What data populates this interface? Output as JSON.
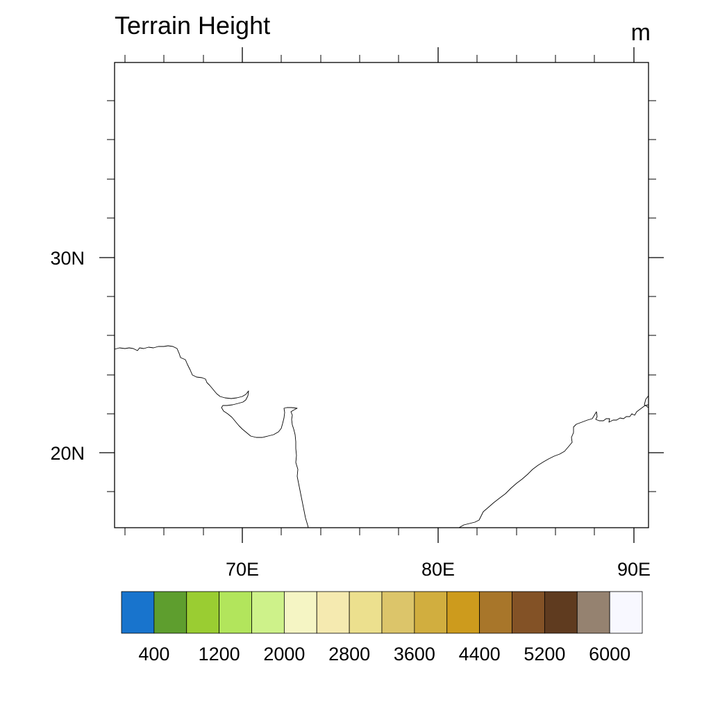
{
  "title": "Terrain Height",
  "units": "m",
  "map": {
    "lon_labels": [
      "70E",
      "80E",
      "90E"
    ],
    "lat_labels": [
      "30N",
      "20N"
    ]
  },
  "colorbar": {
    "colors": [
      "#1874cd",
      "#5e9e2e",
      "#9acd32",
      "#b2e55c",
      "#cef28a",
      "#f5f5c4",
      "#f5eab0",
      "#ece08e",
      "#dcc56a",
      "#d1ae3f",
      "#cd9b1d",
      "#a8762a",
      "#835226",
      "#5f3b1f",
      "#958270",
      "#f8f8ff"
    ],
    "tick_labels": [
      "400",
      "1200",
      "2000",
      "2800",
      "3600",
      "4400",
      "5200",
      "6000"
    ]
  }
}
